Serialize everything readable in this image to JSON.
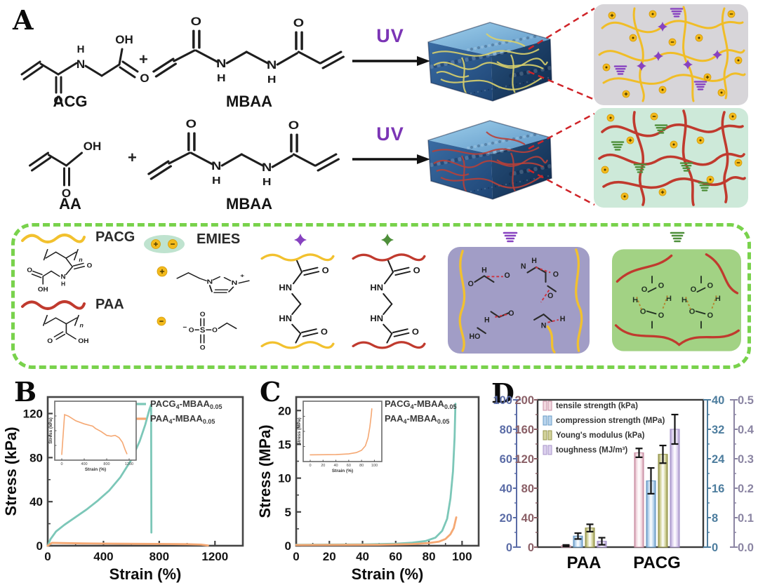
{
  "figure": {
    "panelA": "A",
    "panelB": "B",
    "panelC": "C",
    "panelD": "D"
  },
  "panelA": {
    "reaction1": {
      "m1": "ACG",
      "plus": "+",
      "m2": "MBAA",
      "uv": "UV"
    },
    "reaction2": {
      "m1": "AA",
      "plus": "+",
      "m2": "MBAA",
      "uv": "UV"
    }
  },
  "legend_box": {
    "pacg": "PACG",
    "paa": "PAA",
    "emies": "EMIES"
  },
  "chart_data": [
    {
      "id": "B",
      "type": "line",
      "xlabel": "Strain (%)",
      "ylabel": "Stress (kPa)",
      "xlim": [
        0,
        1400
      ],
      "ylim": [
        0,
        135
      ],
      "xticks": [
        0,
        400,
        800,
        1200
      ],
      "yticks": [
        0,
        40,
        80,
        120
      ],
      "legend": [
        {
          "segments": [
            {
              "t": "PACG"
            },
            {
              "t": "4",
              "sub": true
            },
            {
              "t": "-MBAA"
            },
            {
              "t": "0.05",
              "sub": true
            }
          ]
        },
        {
          "segments": [
            {
              "t": "PAA"
            },
            {
              "t": "4",
              "sub": true
            },
            {
              "t": "-MBAA"
            },
            {
              "t": "0.05",
              "sub": true
            }
          ]
        }
      ],
      "series": [
        {
          "name": "PACG4-MBAA0.05",
          "color": "#7cc7b8",
          "points": [
            [
              0,
              0
            ],
            [
              20,
              6
            ],
            [
              60,
              13
            ],
            [
              120,
              19
            ],
            [
              200,
              26
            ],
            [
              280,
              33
            ],
            [
              360,
              41
            ],
            [
              440,
              50
            ],
            [
              520,
              62
            ],
            [
              600,
              78
            ],
            [
              660,
              95
            ],
            [
              700,
              110
            ],
            [
              730,
              124
            ],
            [
              742,
              128
            ],
            [
              744,
              12
            ]
          ]
        },
        {
          "name": "PAA4-MBAA0.05",
          "color": "#f5a873",
          "points": [
            [
              0,
              0
            ],
            [
              30,
              2.6
            ],
            [
              100,
              2.4
            ],
            [
              250,
              2.1
            ],
            [
              450,
              1.9
            ],
            [
              650,
              1.7
            ],
            [
              850,
              1.6
            ],
            [
              1000,
              1.4
            ],
            [
              1100,
              1.0
            ],
            [
              1150,
              0.2
            ]
          ]
        }
      ],
      "inset": {
        "xlabel": "Strain (%)",
        "ylabel": "Stress (kPa)",
        "xlim": [
          0,
          1250
        ],
        "ylim": [
          0,
          3.2
        ],
        "xticks": [
          0,
          400,
          800,
          1200
        ],
        "series": [
          {
            "color": "#f5a873",
            "points": [
              [
                0,
                0
              ],
              [
                50,
                2.6
              ],
              [
                120,
                2.5
              ],
              [
                250,
                2.2
              ],
              [
                400,
                2.0
              ],
              [
                550,
                1.85
              ],
              [
                600,
                1.7
              ],
              [
                700,
                1.5
              ],
              [
                800,
                1.25
              ],
              [
                880,
                1.2
              ],
              [
                950,
                1.25
              ],
              [
                1020,
                1.1
              ],
              [
                1080,
                0.8
              ],
              [
                1130,
                0.3
              ],
              [
                1160,
                0.05
              ]
            ]
          }
        ]
      }
    },
    {
      "id": "C",
      "type": "line",
      "xlabel": "Strain (%)",
      "ylabel": "Stress (MPa)",
      "xlim": [
        0,
        110
      ],
      "ylim": [
        0,
        22
      ],
      "xticks": [
        0,
        20,
        40,
        60,
        80,
        100
      ],
      "yticks": [
        0,
        5,
        10,
        15,
        20
      ],
      "legend": [
        {
          "segments": [
            {
              "t": "PACG"
            },
            {
              "t": "4",
              "sub": true
            },
            {
              "t": "-MBAA"
            },
            {
              "t": "0.05",
              "sub": true
            }
          ]
        },
        {
          "segments": [
            {
              "t": "PAA"
            },
            {
              "t": "4",
              "sub": true
            },
            {
              "t": "-MBAA"
            },
            {
              "t": "0.05",
              "sub": true
            }
          ]
        }
      ],
      "series": [
        {
          "name": "PACG4-MBAA0.05",
          "color": "#7cc7b8",
          "points": [
            [
              0,
              0.15
            ],
            [
              40,
              0.2
            ],
            [
              60,
              0.3
            ],
            [
              70,
              0.45
            ],
            [
              78,
              0.7
            ],
            [
              84,
              1.2
            ],
            [
              88,
              2.2
            ],
            [
              91,
              4
            ],
            [
              93,
              7
            ],
            [
              94.5,
              11
            ],
            [
              95.5,
              16
            ],
            [
              96,
              21
            ]
          ]
        },
        {
          "name": "PAA4-MBAA0.05",
          "color": "#f5a873",
          "points": [
            [
              0,
              0.1
            ],
            [
              50,
              0.15
            ],
            [
              70,
              0.25
            ],
            [
              80,
              0.4
            ],
            [
              86,
              0.6
            ],
            [
              90,
              1.0
            ],
            [
              93,
              1.7
            ],
            [
              95,
              2.6
            ],
            [
              96.5,
              4.2
            ]
          ]
        }
      ],
      "inset": {
        "xlabel": "Strain (%)",
        "ylabel": "Stress (MPa)",
        "xlim": [
          0,
          105
        ],
        "ylim": [
          0,
          4.5
        ],
        "xticks": [
          0,
          20,
          40,
          60,
          80,
          100
        ],
        "series": [
          {
            "color": "#f5a873",
            "points": [
              [
                0,
                0.1
              ],
              [
                40,
                0.12
              ],
              [
                60,
                0.18
              ],
              [
                72,
                0.3
              ],
              [
                80,
                0.5
              ],
              [
                86,
                0.9
              ],
              [
                90,
                1.6
              ],
              [
                93,
                2.6
              ],
              [
                95,
                3.6
              ],
              [
                96,
                4.2
              ]
            ]
          }
        ]
      }
    },
    {
      "id": "D",
      "type": "bar",
      "categories": [
        "PAA",
        "PACG"
      ],
      "axes": [
        {
          "side": "left-outer",
          "color": "#5b6ca6",
          "max": 100,
          "ticks": [
            0,
            20,
            40,
            60,
            80,
            100
          ]
        },
        {
          "side": "left-inner",
          "color": "#8a5f66",
          "max": 200,
          "ticks": [
            0,
            40,
            80,
            120,
            160,
            200
          ]
        },
        {
          "side": "right-inner",
          "color": "#4d7d9e",
          "max": 40,
          "ticks": [
            0,
            8,
            16,
            24,
            32,
            40
          ]
        },
        {
          "side": "right-outer",
          "color": "#8b85a3",
          "max": 0.5,
          "ticks": [
            "0.0",
            "0.1",
            "0.2",
            "0.3",
            "0.4",
            "0.5"
          ]
        }
      ],
      "series": [
        {
          "name": "tensile strength (kPa)",
          "fill": "#f3dae1",
          "edge": "#c98fa4",
          "axis": 1,
          "values": [
            2,
            128
          ],
          "errors": [
            1,
            6
          ]
        },
        {
          "name": "compression strength (MPa)",
          "fill": "#b9d5ee",
          "edge": "#6b9cc6",
          "axis": 2,
          "values": [
            3,
            18
          ],
          "errors": [
            0.8,
            3.5
          ]
        },
        {
          "name": "Young's modulus (kPa)",
          "fill": "#d3d39b",
          "edge": "#97974f",
          "axis": 0,
          "values": [
            13,
            63
          ],
          "errors": [
            2.5,
            6
          ]
        },
        {
          "name": "toughness (MJ/m³)",
          "fill": "#dcd0ee",
          "edge": "#a795c9",
          "axis": 3,
          "values": [
            0.02,
            0.4
          ],
          "errors": [
            0.012,
            0.05
          ]
        }
      ]
    }
  ]
}
